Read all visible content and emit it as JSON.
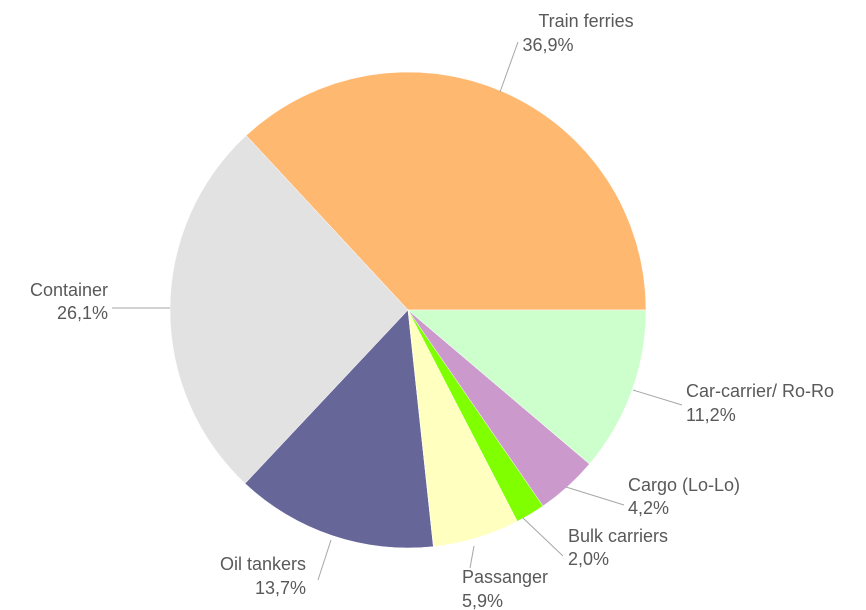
{
  "chart_data": {
    "type": "pie",
    "categories": [
      "Train ferries",
      "Container",
      "Oil tankers",
      "Passanger",
      "Bulk carriers",
      "Cargo (Lo-Lo)",
      "Car-carrier/ Ro-Ro"
    ],
    "values": [
      36.9,
      26.1,
      13.7,
      5.9,
      2.0,
      4.2,
      11.2
    ],
    "value_labels": [
      "36,9%",
      "26,1%",
      "13,7%",
      "5,9%",
      "2,0%",
      "4,2%",
      "11,2%"
    ],
    "colors": [
      "#ffb870",
      "#e2e2e2",
      "#666699",
      "#ffffc0",
      "#80ff00",
      "#cc99cc",
      "#ccffcc"
    ]
  }
}
